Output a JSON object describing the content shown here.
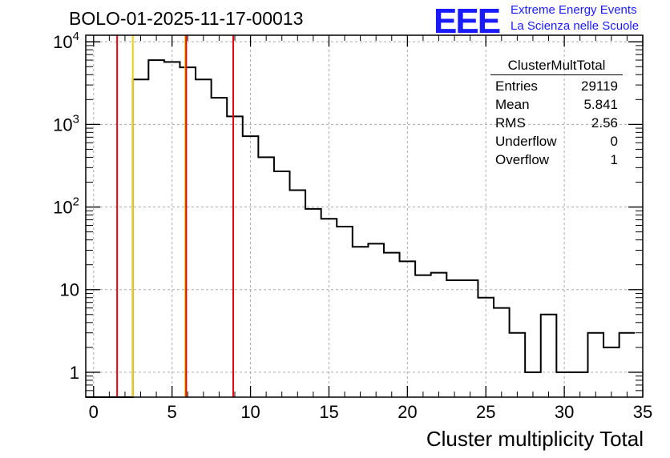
{
  "title": "BOLO-01-2025-11-17-00013",
  "logo": {
    "mark": "EEE",
    "line1": "Extreme Energy Events",
    "line2": "La Scienza nelle Scuole"
  },
  "stats_box": {
    "name": "ClusterMultTotal",
    "rows": [
      {
        "label": "Entries",
        "value": "29119"
      },
      {
        "label": "Mean",
        "value": "5.841"
      },
      {
        "label": "RMS",
        "value": "2.56"
      },
      {
        "label": "Underflow",
        "value": "0"
      },
      {
        "label": "Overflow",
        "value": "1"
      }
    ]
  },
  "colors": {
    "histogram": "#000000",
    "grid": "#aaaaaa",
    "cut_line": "#e8000b",
    "mean_line": "#f2d100"
  },
  "chart_data": {
    "type": "histogram",
    "title": "BOLO-01-2025-11-17-00013",
    "xlabel": "Cluster multiplicity Total",
    "ylabel": "",
    "xlim": [
      -0.5,
      35
    ],
    "ylim": [
      0.5,
      12000
    ],
    "yscale": "log",
    "grid": true,
    "xticks": [
      0,
      5,
      10,
      15,
      20,
      25,
      30,
      35
    ],
    "xtick_labels": [
      "0",
      "5",
      "10",
      "15",
      "20",
      "25",
      "30",
      "35"
    ],
    "yticks": [
      1,
      10,
      100,
      1000,
      10000
    ],
    "ytick_labels": [
      "1",
      "10",
      "10^2",
      "10^3",
      "10^4"
    ],
    "bin_width": 1,
    "bin_centers": [
      0,
      1,
      2,
      3,
      4,
      5,
      6,
      7,
      8,
      9,
      10,
      11,
      12,
      13,
      14,
      15,
      16,
      17,
      18,
      19,
      20,
      21,
      22,
      23,
      24,
      25,
      26,
      27,
      28,
      29,
      30,
      31,
      32,
      33,
      34
    ],
    "counts": [
      0,
      0,
      0,
      3500,
      6000,
      5700,
      4900,
      3500,
      2100,
      1250,
      720,
      400,
      270,
      160,
      95,
      72,
      58,
      33,
      36,
      28,
      22,
      15,
      16,
      13,
      13,
      8,
      6,
      3,
      1,
      5,
      1,
      1,
      3,
      2,
      3
    ],
    "vertical_lines": [
      {
        "x": 1.5,
        "kind": "cut"
      },
      {
        "x": 2.5,
        "kind": "mean"
      },
      {
        "x": 5.841,
        "kind": "mean"
      },
      {
        "x": 5.9,
        "kind": "cut"
      },
      {
        "x": 8.9,
        "kind": "cut"
      }
    ]
  }
}
